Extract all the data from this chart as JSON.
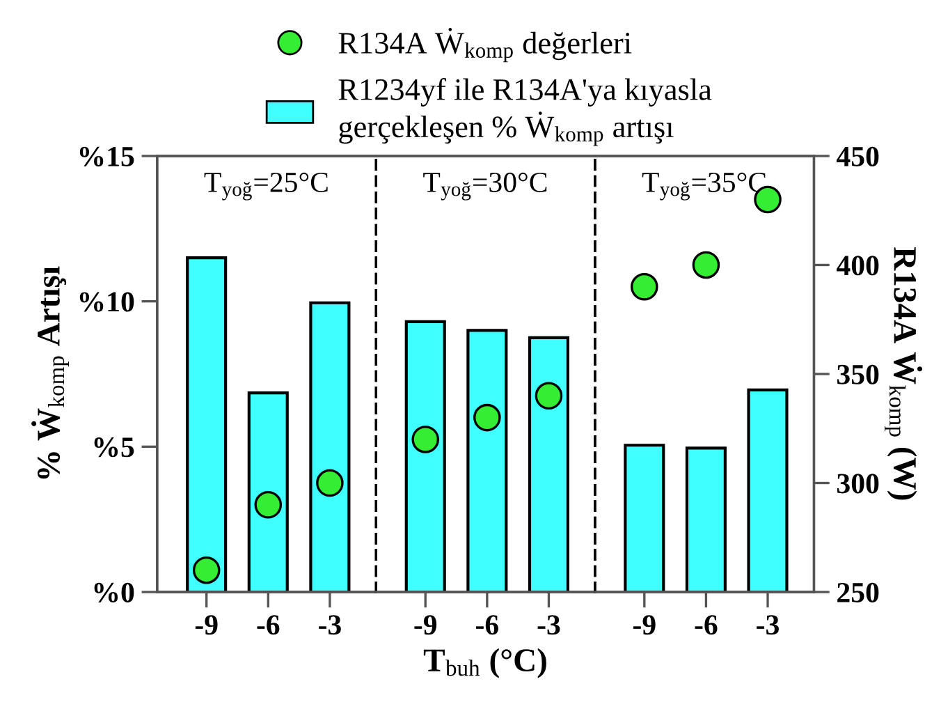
{
  "chart_data": [
    {
      "type": "bar",
      "categories": [
        "-9",
        "-6",
        "-3"
      ],
      "ylabel": "% Ẇ$_{komp}$ Artışı",
      "ylim": [
        0,
        15
      ],
      "yticks": [
        {
          "value": 0,
          "label": "%0"
        },
        {
          "value": 5,
          "label": "%5"
        },
        {
          "value": 10,
          "label": "%10"
        },
        {
          "value": 15,
          "label": "%15"
        }
      ],
      "y2lim": [
        250,
        450
      ],
      "tick_labels": [
        "x",
        "y"
      ],
      "annotations": [
        "T$_{yoğ}$=25°C"
      ],
      "legend": "top",
      "series": [
        {
          "name": "R1234yf ile R134A'ya kıyasla\ngerçekleşen % Ẇ$_{komp}$ artışı",
          "color": "#40ffff",
          "values": [
            11.5,
            6.85,
            9.95
          ]
        },
        {
          "name": "R134A Ẇ$_{komp}$ değerleri",
          "type": "scatter",
          "axis": "y2",
          "color": "#33ee33",
          "marker": "circle",
          "values": [
            260,
            290,
            300
          ]
        }
      ]
    },
    {
      "type": "bar",
      "categories": [
        "-9",
        "-6",
        "-3"
      ],
      "xlabel": "T$_{buh}$ (°C)",
      "ylim": [
        0,
        15
      ],
      "y2lim": [
        250,
        450
      ],
      "tick_labels": [
        "x"
      ],
      "annotations": [
        "T$_{yoğ}$=30°C"
      ],
      "series": [
        {
          "color": "#40ffff",
          "values": [
            9.3,
            9.0,
            8.75
          ]
        },
        {
          "type": "scatter",
          "axis": "y2",
          "color": "#33ee33",
          "marker": "circle",
          "values": [
            320,
            330,
            340
          ]
        }
      ]
    },
    {
      "type": "bar",
      "categories": [
        "-9",
        "-6",
        "-3"
      ],
      "y2label": "R134A Ẇ$_{komp}$ (W)",
      "ylim": [
        0,
        15
      ],
      "y2lim": [
        250,
        450
      ],
      "y2ticks": [
        250,
        300,
        350,
        400,
        450
      ],
      "tick_labels": [
        "x",
        "y2"
      ],
      "annotations": [
        "T$_{yoğ}$=35°C"
      ],
      "series": [
        {
          "color": "#40ffff",
          "values": [
            5.05,
            4.95,
            6.95
          ]
        },
        {
          "type": "scatter",
          "axis": "y2",
          "color": "#33ee33",
          "marker": "circle",
          "values": [
            390,
            400,
            430
          ]
        }
      ]
    }
  ]
}
